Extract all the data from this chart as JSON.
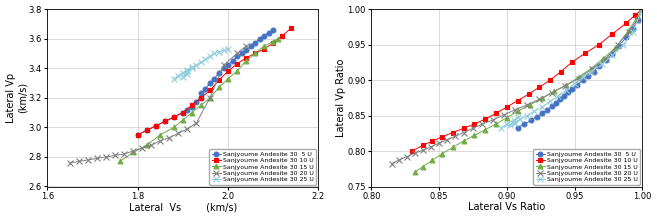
{
  "fig1": {
    "series": [
      {
        "label": "Sanjyoume Andesite 30  5 U",
        "color": "#4472C4",
        "marker": "o",
        "ms": 3.5,
        "vs": [
          1.8,
          1.82,
          1.84,
          1.86,
          1.88,
          1.9,
          1.91,
          1.92,
          1.93,
          1.94,
          1.94,
          1.95,
          1.96,
          1.97,
          1.98,
          1.99,
          2.0,
          2.01,
          2.02,
          2.03,
          2.04,
          2.05,
          2.06,
          2.07,
          2.08,
          2.09,
          2.1
        ],
        "vp": [
          2.95,
          2.98,
          3.01,
          3.04,
          3.07,
          3.1,
          3.12,
          3.14,
          3.17,
          3.2,
          3.23,
          3.26,
          3.3,
          3.33,
          3.37,
          3.4,
          3.42,
          3.45,
          3.48,
          3.5,
          3.52,
          3.55,
          3.57,
          3.6,
          3.62,
          3.64,
          3.66
        ]
      },
      {
        "label": "Sanjyoume Andesite 30 10 U",
        "color": "#FF0000",
        "marker": "s",
        "ms": 3.5,
        "vs": [
          1.8,
          1.82,
          1.84,
          1.86,
          1.88,
          1.9,
          1.92,
          1.94,
          1.96,
          1.98,
          2.0,
          2.02,
          2.04,
          2.06,
          2.08,
          2.1,
          2.12,
          2.14
        ],
        "vp": [
          2.95,
          2.98,
          3.01,
          3.04,
          3.07,
          3.1,
          3.15,
          3.2,
          3.25,
          3.32,
          3.38,
          3.43,
          3.47,
          3.5,
          3.53,
          3.57,
          3.62,
          3.67
        ]
      },
      {
        "label": "Sanjyoume Andesite 30 15 U",
        "color": "#70AD47",
        "marker": "^",
        "ms": 3.5,
        "vs": [
          1.76,
          1.79,
          1.82,
          1.85,
          1.88,
          1.9,
          1.92,
          1.94,
          1.96,
          1.98,
          2.0,
          2.02,
          2.04,
          2.06,
          2.08,
          2.1,
          2.11
        ],
        "vp": [
          2.77,
          2.83,
          2.88,
          2.95,
          3.0,
          3.05,
          3.1,
          3.15,
          3.2,
          3.27,
          3.33,
          3.38,
          3.45,
          3.5,
          3.55,
          3.58,
          3.6
        ]
      },
      {
        "label": "Sanjyoume Andesite 30 20 U",
        "color": "#808080",
        "marker": "x",
        "ms": 4,
        "vs": [
          1.65,
          1.67,
          1.69,
          1.71,
          1.73,
          1.75,
          1.77,
          1.79,
          1.81,
          1.83,
          1.85,
          1.87,
          1.89,
          1.91,
          1.93,
          1.96,
          1.99,
          2.02,
          2.04
        ],
        "vp": [
          2.76,
          2.77,
          2.78,
          2.79,
          2.8,
          2.81,
          2.82,
          2.84,
          2.86,
          2.88,
          2.91,
          2.93,
          2.96,
          2.99,
          3.03,
          3.2,
          3.42,
          3.5,
          3.55
        ]
      },
      {
        "label": "Sanjyoume Andesite 30 25 U",
        "color": "#92CDDC",
        "marker": "x",
        "ms": 4,
        "vs": [
          1.88,
          1.89,
          1.9,
          1.91,
          1.92,
          1.91,
          1.9,
          1.91,
          1.92,
          1.93,
          1.94,
          1.95,
          1.96,
          1.97,
          1.98,
          1.99,
          2.0
        ],
        "vp": [
          3.33,
          3.35,
          3.37,
          3.39,
          3.41,
          3.36,
          3.34,
          3.38,
          3.4,
          3.42,
          3.44,
          3.46,
          3.48,
          3.5,
          3.51,
          3.52,
          3.53
        ]
      }
    ],
    "xlabel": "Lateral  Vs",
    "xlabel2": "(km/s)",
    "ylabel": "Lateral Vp",
    "ylabel2": "(km/s)",
    "xlim": [
      1.6,
      2.2
    ],
    "ylim": [
      2.6,
      3.8
    ],
    "xticks": [
      1.6,
      1.8,
      2.0,
      2.2
    ],
    "yticks": [
      2.6,
      2.8,
      3.0,
      3.2,
      3.4,
      3.6,
      3.8
    ]
  },
  "fig2": {
    "series": [
      {
        "label": "Sanjyoume Andesite 30  5 U",
        "color": "#4472C4",
        "marker": "o",
        "ms": 3.5,
        "vs": [
          0.908,
          0.913,
          0.918,
          0.922,
          0.926,
          0.93,
          0.933,
          0.936,
          0.939,
          0.942,
          0.945,
          0.948,
          0.952,
          0.956,
          0.96,
          0.964,
          0.968,
          0.973,
          0.978,
          0.983,
          0.988,
          0.993,
          0.997,
          1.0
        ],
        "vp": [
          0.833,
          0.838,
          0.843,
          0.848,
          0.853,
          0.858,
          0.863,
          0.868,
          0.873,
          0.878,
          0.883,
          0.888,
          0.893,
          0.9,
          0.906,
          0.912,
          0.92,
          0.928,
          0.937,
          0.948,
          0.96,
          0.972,
          0.985,
          1.0
        ]
      },
      {
        "label": "Sanjyoume Andesite 30 10 U",
        "color": "#FF0000",
        "marker": "s",
        "ms": 3.5,
        "vs": [
          0.83,
          0.838,
          0.845,
          0.852,
          0.86,
          0.868,
          0.876,
          0.884,
          0.892,
          0.9,
          0.908,
          0.916,
          0.924,
          0.932,
          0.94,
          0.948,
          0.958,
          0.968,
          0.978,
          0.988,
          0.995,
          1.0
        ],
        "vp": [
          0.8,
          0.808,
          0.814,
          0.82,
          0.826,
          0.832,
          0.838,
          0.845,
          0.853,
          0.862,
          0.871,
          0.88,
          0.89,
          0.9,
          0.912,
          0.925,
          0.938,
          0.95,
          0.965,
          0.98,
          0.992,
          1.0
        ]
      },
      {
        "label": "Sanjyoume Andesite 30 15 U",
        "color": "#70AD47",
        "marker": "^",
        "ms": 3.5,
        "vs": [
          0.832,
          0.838,
          0.845,
          0.852,
          0.86,
          0.868,
          0.876,
          0.884,
          0.892,
          0.9,
          0.908,
          0.917,
          0.926,
          0.935,
          0.944,
          0.953,
          0.962,
          0.971,
          0.98,
          0.99,
          1.0
        ],
        "vp": [
          0.77,
          0.778,
          0.787,
          0.796,
          0.805,
          0.814,
          0.822,
          0.83,
          0.838,
          0.847,
          0.856,
          0.865,
          0.874,
          0.884,
          0.893,
          0.904,
          0.916,
          0.93,
          0.945,
          0.97,
          1.0
        ]
      },
      {
        "label": "Sanjyoume Andesite 30 20 U",
        "color": "#808080",
        "marker": "x",
        "ms": 4,
        "vs": [
          0.815,
          0.82,
          0.826,
          0.832,
          0.838,
          0.844,
          0.85,
          0.856,
          0.862,
          0.868,
          0.875,
          0.882,
          0.89,
          0.898,
          0.906,
          0.915,
          0.924,
          0.933,
          0.943,
          0.953,
          0.963,
          0.973,
          0.982,
          0.99,
          0.996,
          1.0
        ],
        "vp": [
          0.782,
          0.787,
          0.792,
          0.797,
          0.801,
          0.806,
          0.811,
          0.816,
          0.821,
          0.826,
          0.832,
          0.838,
          0.844,
          0.851,
          0.858,
          0.865,
          0.873,
          0.882,
          0.892,
          0.902,
          0.916,
          0.93,
          0.95,
          0.968,
          0.984,
          1.0
        ]
      },
      {
        "label": "Sanjyoume Andesite 30 25 U",
        "color": "#92CDDC",
        "marker": "x",
        "ms": 4,
        "vs": [
          0.896,
          0.9,
          0.905,
          0.908,
          0.905,
          0.902,
          0.906,
          0.91,
          0.915,
          0.92,
          0.926,
          0.932,
          0.938,
          0.944,
          0.95,
          0.956,
          0.962,
          0.97,
          0.978,
          0.986,
          0.993,
          1.0
        ],
        "vp": [
          0.833,
          0.838,
          0.843,
          0.848,
          0.84,
          0.836,
          0.84,
          0.845,
          0.85,
          0.856,
          0.862,
          0.87,
          0.878,
          0.886,
          0.895,
          0.904,
          0.912,
          0.922,
          0.935,
          0.95,
          0.968,
          1.0
        ]
      }
    ],
    "xlabel": "Lateral Vs Ratio",
    "ylabel": "Lateral Vp Ratio",
    "xlim": [
      0.8,
      1.0
    ],
    "ylim": [
      0.75,
      1.0
    ],
    "xticks": [
      0.8,
      0.85,
      0.9,
      0.95,
      1.0
    ],
    "yticks": [
      0.75,
      0.8,
      0.85,
      0.9,
      0.95,
      1.0
    ]
  }
}
